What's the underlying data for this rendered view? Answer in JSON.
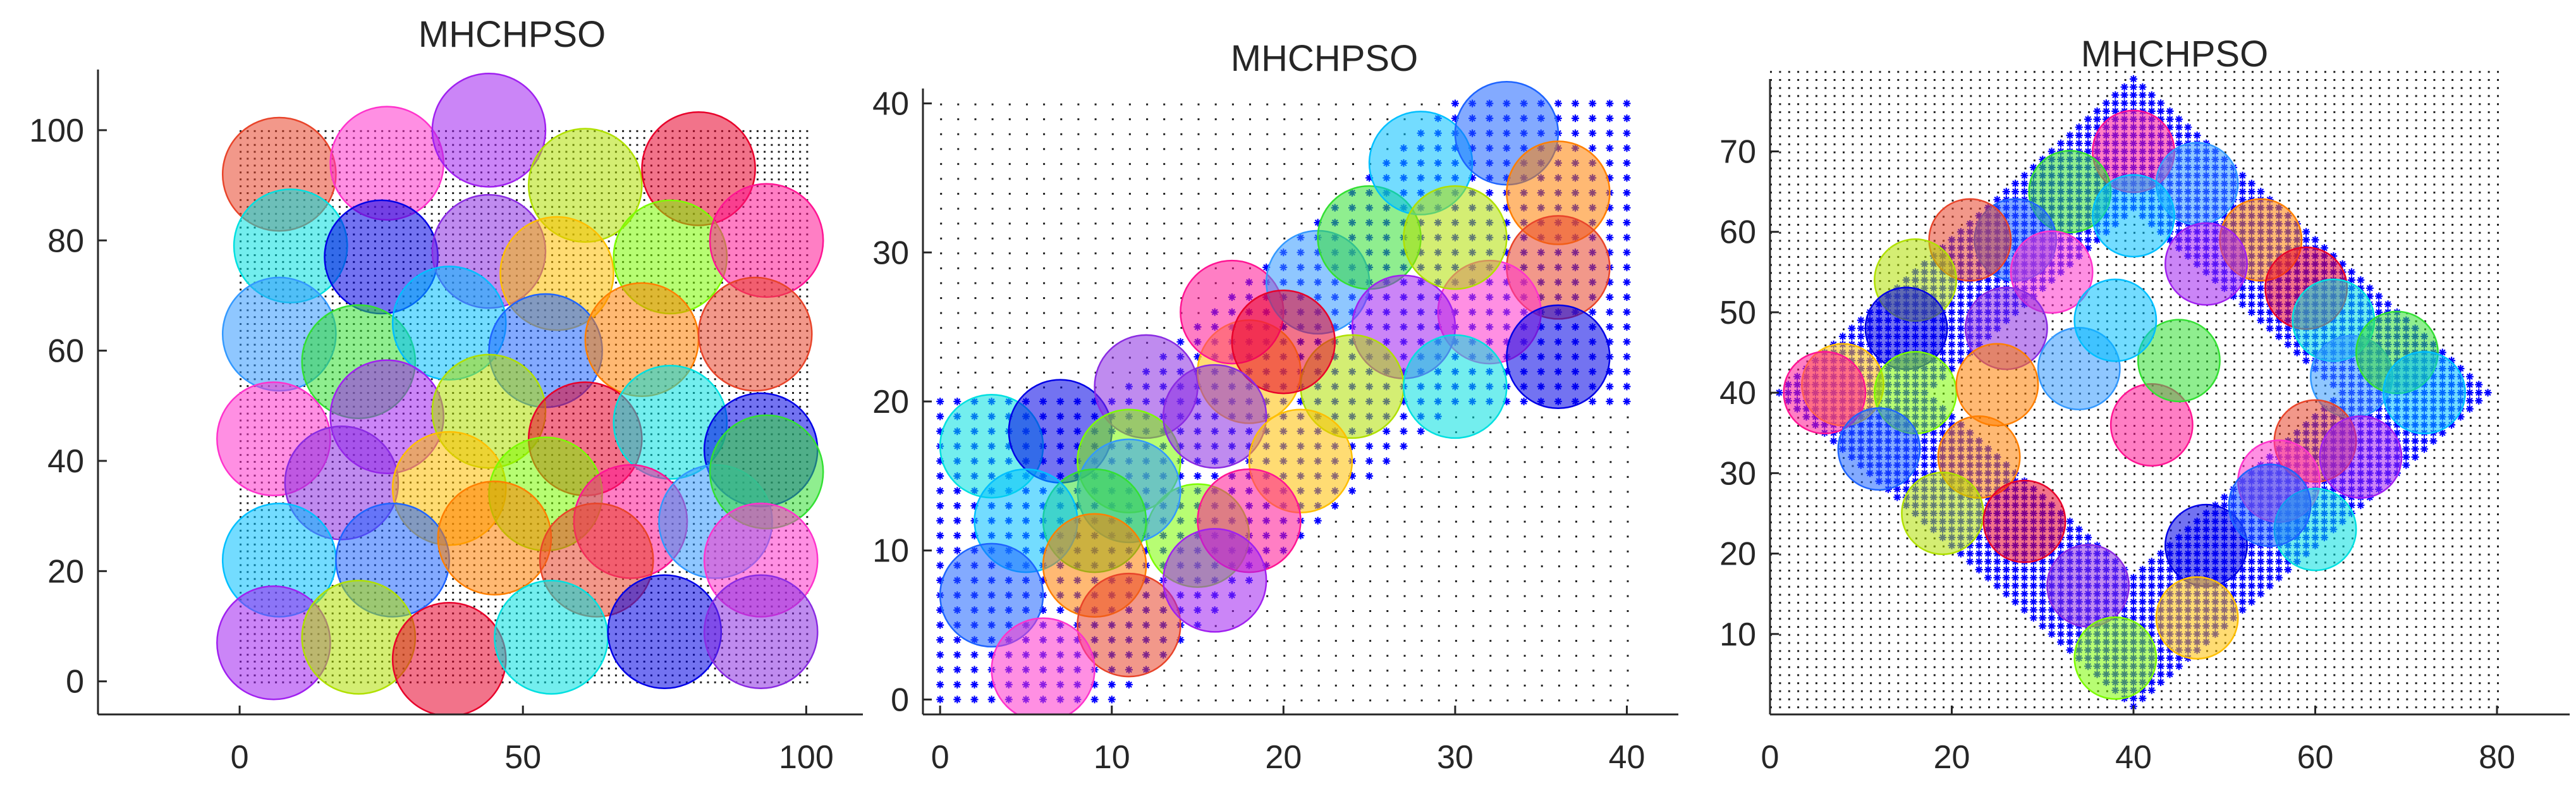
{
  "colors": {
    "palette": [
      "#e8442a",
      "#8a2be2",
      "#1e64ff",
      "#00e0e0",
      "#33e033",
      "#b0e000",
      "#ff1493",
      "#ff33cc",
      "#ffbf00",
      "#ff7f00",
      "#0000e6",
      "#00bfff",
      "#e8002a",
      "#3399ff",
      "#a020f0",
      "#7cfc00"
    ],
    "marker_coverage_point": "#202020",
    "marker_uncovered_point": "#0000ff"
  },
  "chart_data": [
    {
      "type": "scatter",
      "title": "MHCHPSO",
      "xlabel": "",
      "ylabel": "",
      "xlim": [
        -25,
        110
      ],
      "ylim": [
        -6,
        111
      ],
      "xticks": [
        0,
        50,
        100
      ],
      "yticks": [
        0,
        20,
        40,
        60,
        80,
        100
      ],
      "grid": false,
      "region": {
        "shape": "square",
        "x": [
          0,
          100
        ],
        "y": [
          0,
          100
        ]
      },
      "sensor_radius": 10,
      "sensors": [
        [
          7,
          92
        ],
        [
          26,
          94
        ],
        [
          44,
          100
        ],
        [
          61,
          90
        ],
        [
          81,
          93
        ],
        [
          9,
          79
        ],
        [
          25,
          77
        ],
        [
          44,
          78
        ],
        [
          56,
          74
        ],
        [
          76,
          77
        ],
        [
          93,
          80
        ],
        [
          7,
          63
        ],
        [
          21,
          58
        ],
        [
          37,
          65
        ],
        [
          54,
          60
        ],
        [
          71,
          62
        ],
        [
          91,
          63
        ],
        [
          6,
          44
        ],
        [
          26,
          48
        ],
        [
          44,
          49
        ],
        [
          61,
          44
        ],
        [
          76,
          47
        ],
        [
          92,
          42
        ],
        [
          18,
          36
        ],
        [
          37,
          35
        ],
        [
          54,
          34
        ],
        [
          69,
          29
        ],
        [
          84,
          29
        ],
        [
          93,
          38
        ],
        [
          7,
          22
        ],
        [
          27,
          22
        ],
        [
          45,
          26
        ],
        [
          63,
          22
        ],
        [
          92,
          22
        ],
        [
          6,
          7
        ],
        [
          21,
          8
        ],
        [
          37,
          4
        ],
        [
          55,
          8
        ],
        [
          75,
          9
        ],
        [
          92,
          9
        ]
      ]
    },
    {
      "type": "scatter",
      "title": "MHCHPSO",
      "xlabel": "",
      "ylabel": "",
      "xlim": [
        -1,
        43
      ],
      "ylim": [
        -1,
        41
      ],
      "xticks": [
        0,
        10,
        20,
        30,
        40
      ],
      "yticks": [
        0,
        10,
        20,
        30,
        40
      ],
      "grid": false,
      "region": {
        "shape": "band",
        "lower": [
          [
            0,
            0
          ],
          [
            10,
            0
          ],
          [
            30,
            20
          ],
          [
            40,
            20
          ],
          [
            40,
            40
          ],
          [
            30,
            40
          ],
          [
            10,
            20
          ],
          [
            0,
            20
          ]
        ]
      },
      "sensor_radius": 3,
      "sensors": [
        [
          3,
          17
        ],
        [
          7,
          18
        ],
        [
          12,
          21
        ],
        [
          18,
          22
        ],
        [
          11,
          16
        ],
        [
          17,
          26
        ],
        [
          22,
          28
        ],
        [
          25,
          31
        ],
        [
          28,
          36
        ],
        [
          33,
          38
        ],
        [
          36,
          34
        ],
        [
          36,
          29
        ],
        [
          32,
          26
        ],
        [
          27,
          25
        ],
        [
          24,
          21
        ],
        [
          20,
          24
        ],
        [
          30,
          21
        ],
        [
          36,
          23
        ],
        [
          16,
          19
        ],
        [
          21,
          16
        ],
        [
          15,
          11
        ],
        [
          18,
          12
        ],
        [
          11,
          14
        ],
        [
          9,
          12
        ],
        [
          5,
          12
        ],
        [
          3,
          7
        ],
        [
          9,
          9
        ],
        [
          11,
          5
        ],
        [
          6,
          2
        ],
        [
          16,
          8
        ],
        [
          30,
          31
        ]
      ]
    },
    {
      "type": "scatter",
      "title": "MHCHPSO",
      "xlabel": "",
      "ylabel": "",
      "xlim": [
        0,
        88
      ],
      "ylim": [
        0,
        79
      ],
      "xticks": [
        0,
        20,
        40,
        60,
        80
      ],
      "yticks": [
        10,
        20,
        30,
        40,
        50,
        60,
        70
      ],
      "grid": false,
      "region": {
        "shape": "diamond",
        "center": [
          40,
          40
        ],
        "outer": 39,
        "inner": 23
      },
      "sensor_radius": 4.5,
      "sensors": [
        [
          40,
          70
        ],
        [
          47,
          66
        ],
        [
          33,
          65
        ],
        [
          40,
          62
        ],
        [
          27,
          59
        ],
        [
          54,
          59
        ],
        [
          22,
          59
        ],
        [
          31,
          55
        ],
        [
          48,
          56
        ],
        [
          16,
          54
        ],
        [
          59,
          53
        ],
        [
          62,
          49
        ],
        [
          15,
          48
        ],
        [
          26,
          48
        ],
        [
          8,
          41
        ],
        [
          16,
          40
        ],
        [
          6,
          40
        ],
        [
          64,
          42
        ],
        [
          69,
          45
        ],
        [
          72,
          40
        ],
        [
          12,
          33
        ],
        [
          23,
          32
        ],
        [
          60,
          34
        ],
        [
          56,
          29
        ],
        [
          65,
          32
        ],
        [
          19,
          25
        ],
        [
          28,
          24
        ],
        [
          60,
          23
        ],
        [
          48,
          21
        ],
        [
          35,
          16
        ],
        [
          47,
          12
        ],
        [
          38,
          7
        ],
        [
          42,
          36
        ],
        [
          34,
          43
        ],
        [
          45,
          44
        ],
        [
          38,
          49
        ],
        [
          55,
          26
        ],
        [
          25,
          41
        ]
      ]
    }
  ]
}
